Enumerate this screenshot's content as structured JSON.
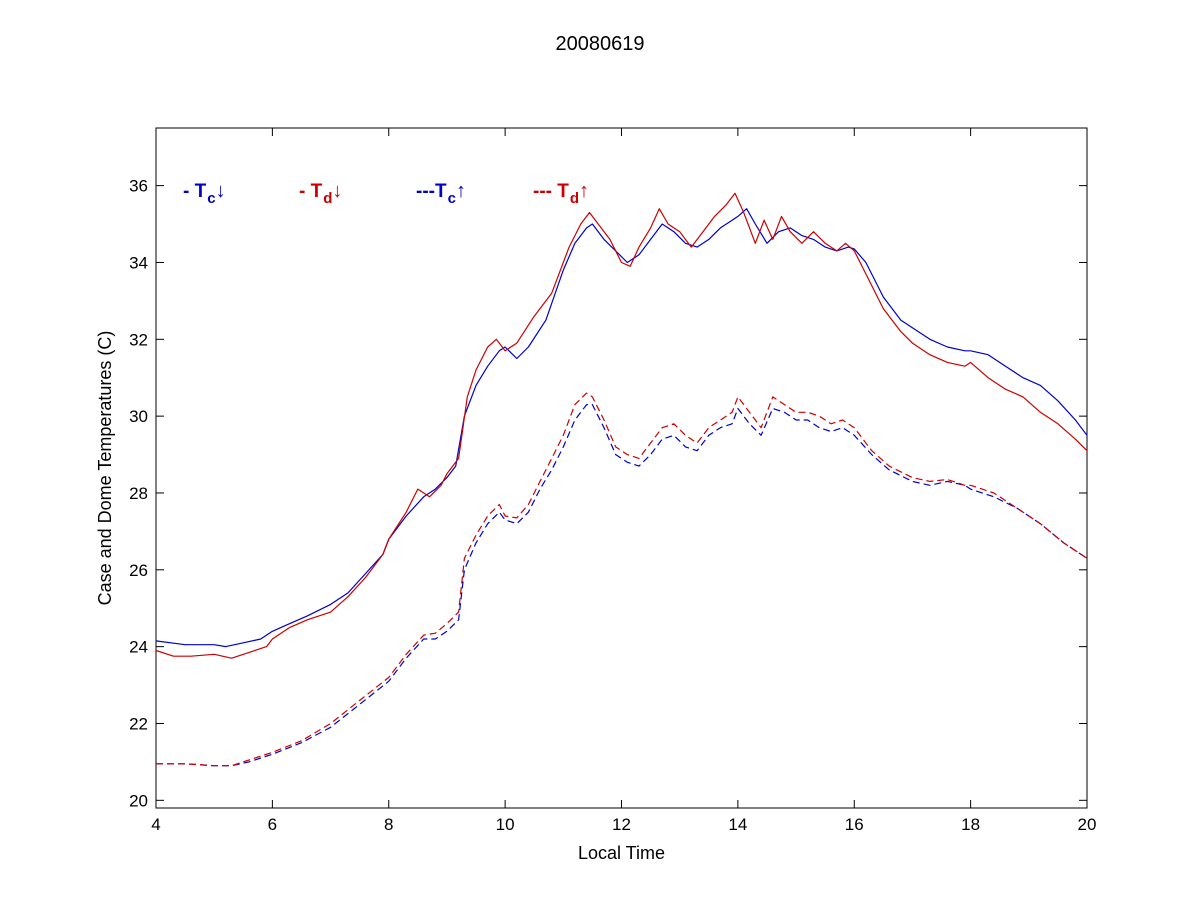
{
  "chart_data": {
    "type": "line",
    "title": "20080619",
    "xlabel": "Local Time",
    "ylabel": "Case and Dome Temperatures (C)",
    "xlim": [
      4,
      20
    ],
    "ylim": [
      19.8,
      37.5
    ],
    "xticks": [
      4,
      6,
      8,
      10,
      12,
      14,
      16,
      18,
      20
    ],
    "yticks": [
      20,
      22,
      24,
      26,
      28,
      30,
      32,
      34,
      36
    ],
    "grid": false,
    "legend": [
      {
        "prefix": "- T",
        "sub": "c",
        "arrow": "↓",
        "color": "#0000cc"
      },
      {
        "prefix": "- T",
        "sub": "d",
        "arrow": "↓",
        "color": "#cc0000"
      },
      {
        "prefix": "---T",
        "sub": "c",
        "arrow": "↑",
        "color": "#0000cc"
      },
      {
        "prefix": "--- T",
        "sub": "d",
        "arrow": "↑",
        "color": "#cc0000"
      }
    ],
    "series": [
      {
        "style": "solid",
        "color": "#0000cc",
        "x": [
          4.0,
          4.5,
          5.0,
          5.2,
          5.5,
          5.8,
          6.0,
          6.3,
          6.6,
          7.0,
          7.3,
          7.6,
          7.9,
          8.0,
          8.3,
          8.6,
          8.8,
          9.0,
          9.15,
          9.3,
          9.5,
          9.7,
          9.9,
          10.0,
          10.2,
          10.4,
          10.7,
          11.0,
          11.2,
          11.4,
          11.5,
          11.7,
          11.9,
          12.1,
          12.3,
          12.5,
          12.7,
          12.9,
          13.1,
          13.3,
          13.5,
          13.7,
          13.9,
          14.0,
          14.15,
          14.3,
          14.5,
          14.7,
          14.9,
          15.1,
          15.3,
          15.5,
          15.7,
          15.9,
          16.0,
          16.2,
          16.5,
          16.8,
          17.0,
          17.3,
          17.6,
          17.9,
          18.0,
          18.3,
          18.6,
          18.9,
          19.2,
          19.5,
          19.8,
          20.0
        ],
        "y": [
          24.15,
          24.05,
          24.05,
          24.0,
          24.1,
          24.2,
          24.4,
          24.6,
          24.8,
          25.1,
          25.4,
          25.9,
          26.4,
          26.8,
          27.4,
          27.9,
          28.1,
          28.4,
          28.7,
          30.0,
          30.8,
          31.3,
          31.7,
          31.8,
          31.5,
          31.8,
          32.5,
          33.8,
          34.5,
          34.9,
          35.0,
          34.6,
          34.3,
          34.0,
          34.2,
          34.6,
          35.0,
          34.8,
          34.5,
          34.4,
          34.6,
          34.9,
          35.1,
          35.2,
          35.4,
          35.0,
          34.5,
          34.8,
          34.9,
          34.7,
          34.6,
          34.4,
          34.3,
          34.4,
          34.35,
          34.0,
          33.1,
          32.5,
          32.3,
          32.0,
          31.8,
          31.7,
          31.7,
          31.6,
          31.3,
          31.0,
          30.8,
          30.4,
          29.9,
          29.5
        ]
      },
      {
        "style": "solid",
        "color": "#cc0000",
        "x": [
          4.0,
          4.3,
          4.6,
          5.0,
          5.3,
          5.6,
          5.9,
          6.0,
          6.3,
          6.6,
          7.0,
          7.3,
          7.6,
          7.9,
          8.0,
          8.3,
          8.5,
          8.7,
          8.9,
          9.0,
          9.2,
          9.35,
          9.5,
          9.7,
          9.85,
          10.0,
          10.2,
          10.5,
          10.8,
          11.1,
          11.3,
          11.45,
          11.6,
          11.8,
          12.0,
          12.15,
          12.3,
          12.5,
          12.65,
          12.8,
          13.0,
          13.2,
          13.4,
          13.6,
          13.8,
          13.95,
          14.1,
          14.3,
          14.45,
          14.6,
          14.75,
          14.9,
          15.1,
          15.3,
          15.5,
          15.7,
          15.85,
          16.0,
          16.2,
          16.5,
          16.8,
          17.0,
          17.3,
          17.6,
          17.9,
          18.0,
          18.3,
          18.6,
          18.9,
          19.2,
          19.5,
          19.8,
          20.0
        ],
        "y": [
          23.9,
          23.75,
          23.75,
          23.8,
          23.7,
          23.85,
          24.0,
          24.2,
          24.5,
          24.7,
          24.9,
          25.3,
          25.8,
          26.4,
          26.8,
          27.5,
          28.1,
          27.9,
          28.2,
          28.5,
          28.9,
          30.5,
          31.2,
          31.8,
          32.0,
          31.7,
          31.9,
          32.6,
          33.2,
          34.4,
          35.0,
          35.3,
          35.0,
          34.6,
          34.0,
          33.9,
          34.4,
          34.9,
          35.4,
          35.0,
          34.8,
          34.4,
          34.8,
          35.2,
          35.5,
          35.8,
          35.3,
          34.5,
          35.1,
          34.6,
          35.2,
          34.8,
          34.5,
          34.8,
          34.5,
          34.3,
          34.5,
          34.3,
          33.7,
          32.8,
          32.2,
          31.9,
          31.6,
          31.4,
          31.3,
          31.4,
          31.0,
          30.7,
          30.5,
          30.1,
          29.8,
          29.4,
          29.1
        ]
      },
      {
        "style": "dashed",
        "color": "#0000cc",
        "x": [
          4.0,
          4.5,
          5.0,
          5.3,
          5.6,
          6.0,
          6.5,
          7.0,
          7.5,
          8.0,
          8.3,
          8.6,
          8.8,
          9.0,
          9.2,
          9.3,
          9.5,
          9.7,
          9.9,
          10.0,
          10.2,
          10.4,
          10.6,
          10.8,
          11.0,
          11.2,
          11.4,
          11.5,
          11.7,
          11.9,
          12.1,
          12.3,
          12.5,
          12.7,
          12.9,
          13.1,
          13.3,
          13.5,
          13.7,
          13.9,
          14.0,
          14.2,
          14.4,
          14.6,
          14.8,
          15.0,
          15.2,
          15.4,
          15.6,
          15.8,
          16.0,
          16.3,
          16.6,
          17.0,
          17.3,
          17.6,
          17.9,
          18.0,
          18.4,
          18.8,
          19.2,
          19.6,
          20.0
        ],
        "y": [
          20.95,
          20.95,
          20.9,
          20.9,
          21.0,
          21.2,
          21.5,
          21.9,
          22.5,
          23.1,
          23.7,
          24.2,
          24.2,
          24.4,
          24.7,
          26.0,
          26.7,
          27.2,
          27.5,
          27.3,
          27.2,
          27.5,
          28.1,
          28.6,
          29.2,
          29.9,
          30.3,
          30.3,
          29.7,
          29.0,
          28.8,
          28.7,
          29.0,
          29.4,
          29.5,
          29.2,
          29.1,
          29.5,
          29.7,
          29.8,
          30.2,
          29.8,
          29.5,
          30.2,
          30.1,
          29.9,
          29.9,
          29.7,
          29.6,
          29.7,
          29.5,
          29.0,
          28.6,
          28.3,
          28.2,
          28.3,
          28.2,
          28.1,
          27.9,
          27.6,
          27.2,
          26.7,
          26.3
        ]
      },
      {
        "style": "dashed",
        "color": "#cc0000",
        "x": [
          4.0,
          4.5,
          5.0,
          5.3,
          5.6,
          6.0,
          6.5,
          7.0,
          7.5,
          8.0,
          8.3,
          8.6,
          8.8,
          9.0,
          9.2,
          9.3,
          9.5,
          9.7,
          9.9,
          10.0,
          10.2,
          10.4,
          10.6,
          10.8,
          11.0,
          11.2,
          11.4,
          11.5,
          11.7,
          11.9,
          12.1,
          12.3,
          12.5,
          12.7,
          12.9,
          13.1,
          13.3,
          13.5,
          13.7,
          13.9,
          14.0,
          14.2,
          14.4,
          14.6,
          14.8,
          15.0,
          15.2,
          15.4,
          15.6,
          15.8,
          16.0,
          16.3,
          16.6,
          17.0,
          17.3,
          17.6,
          17.9,
          18.0,
          18.4,
          18.8,
          19.2,
          19.6,
          20.0
        ],
        "y": [
          20.95,
          20.95,
          20.9,
          20.9,
          21.05,
          21.25,
          21.55,
          22.0,
          22.6,
          23.2,
          23.8,
          24.3,
          24.35,
          24.6,
          24.9,
          26.3,
          26.9,
          27.4,
          27.7,
          27.4,
          27.35,
          27.7,
          28.3,
          28.9,
          29.5,
          30.3,
          30.6,
          30.5,
          29.9,
          29.2,
          29.0,
          28.9,
          29.3,
          29.7,
          29.8,
          29.5,
          29.3,
          29.7,
          29.9,
          30.1,
          30.5,
          30.1,
          29.7,
          30.5,
          30.3,
          30.1,
          30.1,
          30.0,
          29.8,
          29.9,
          29.7,
          29.1,
          28.7,
          28.4,
          28.3,
          28.35,
          28.2,
          28.2,
          28.0,
          27.6,
          27.2,
          26.7,
          26.3
        ]
      }
    ]
  }
}
